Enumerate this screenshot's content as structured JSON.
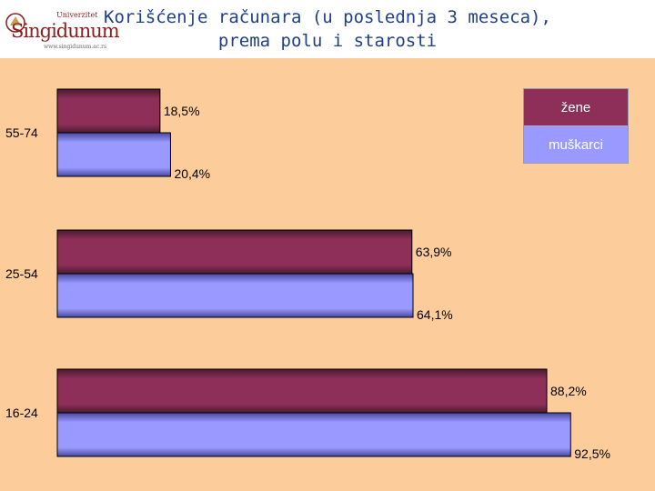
{
  "header": {
    "title_line1": "Korišćenje računara (u poslednja 3 meseca),",
    "title_line2": "prema polu i starosti",
    "logo": {
      "top_text": "Univerzitet",
      "name": "Singidunum",
      "url": "www.singidunum.ac.rs"
    }
  },
  "colors": {
    "background": "#fccc9a",
    "women": "#8e2f5a",
    "men": "#9999ff",
    "title": "#1f3f8a"
  },
  "chart_data": {
    "type": "bar",
    "orientation": "horizontal",
    "categories": [
      "55-74",
      "25-54",
      "16-24"
    ],
    "series": [
      {
        "name": "žene",
        "values": [
          18.5,
          63.9,
          88.2
        ],
        "labels": [
          "18,5%",
          "63,9%",
          "88,2%"
        ]
      },
      {
        "name": "muškarci",
        "values": [
          20.4,
          64.1,
          92.5
        ],
        "labels": [
          "20,4%",
          "64,1%",
          "92,5%"
        ]
      }
    ],
    "xlim": [
      0,
      100
    ],
    "grid": false,
    "legend_position": "top-right"
  }
}
